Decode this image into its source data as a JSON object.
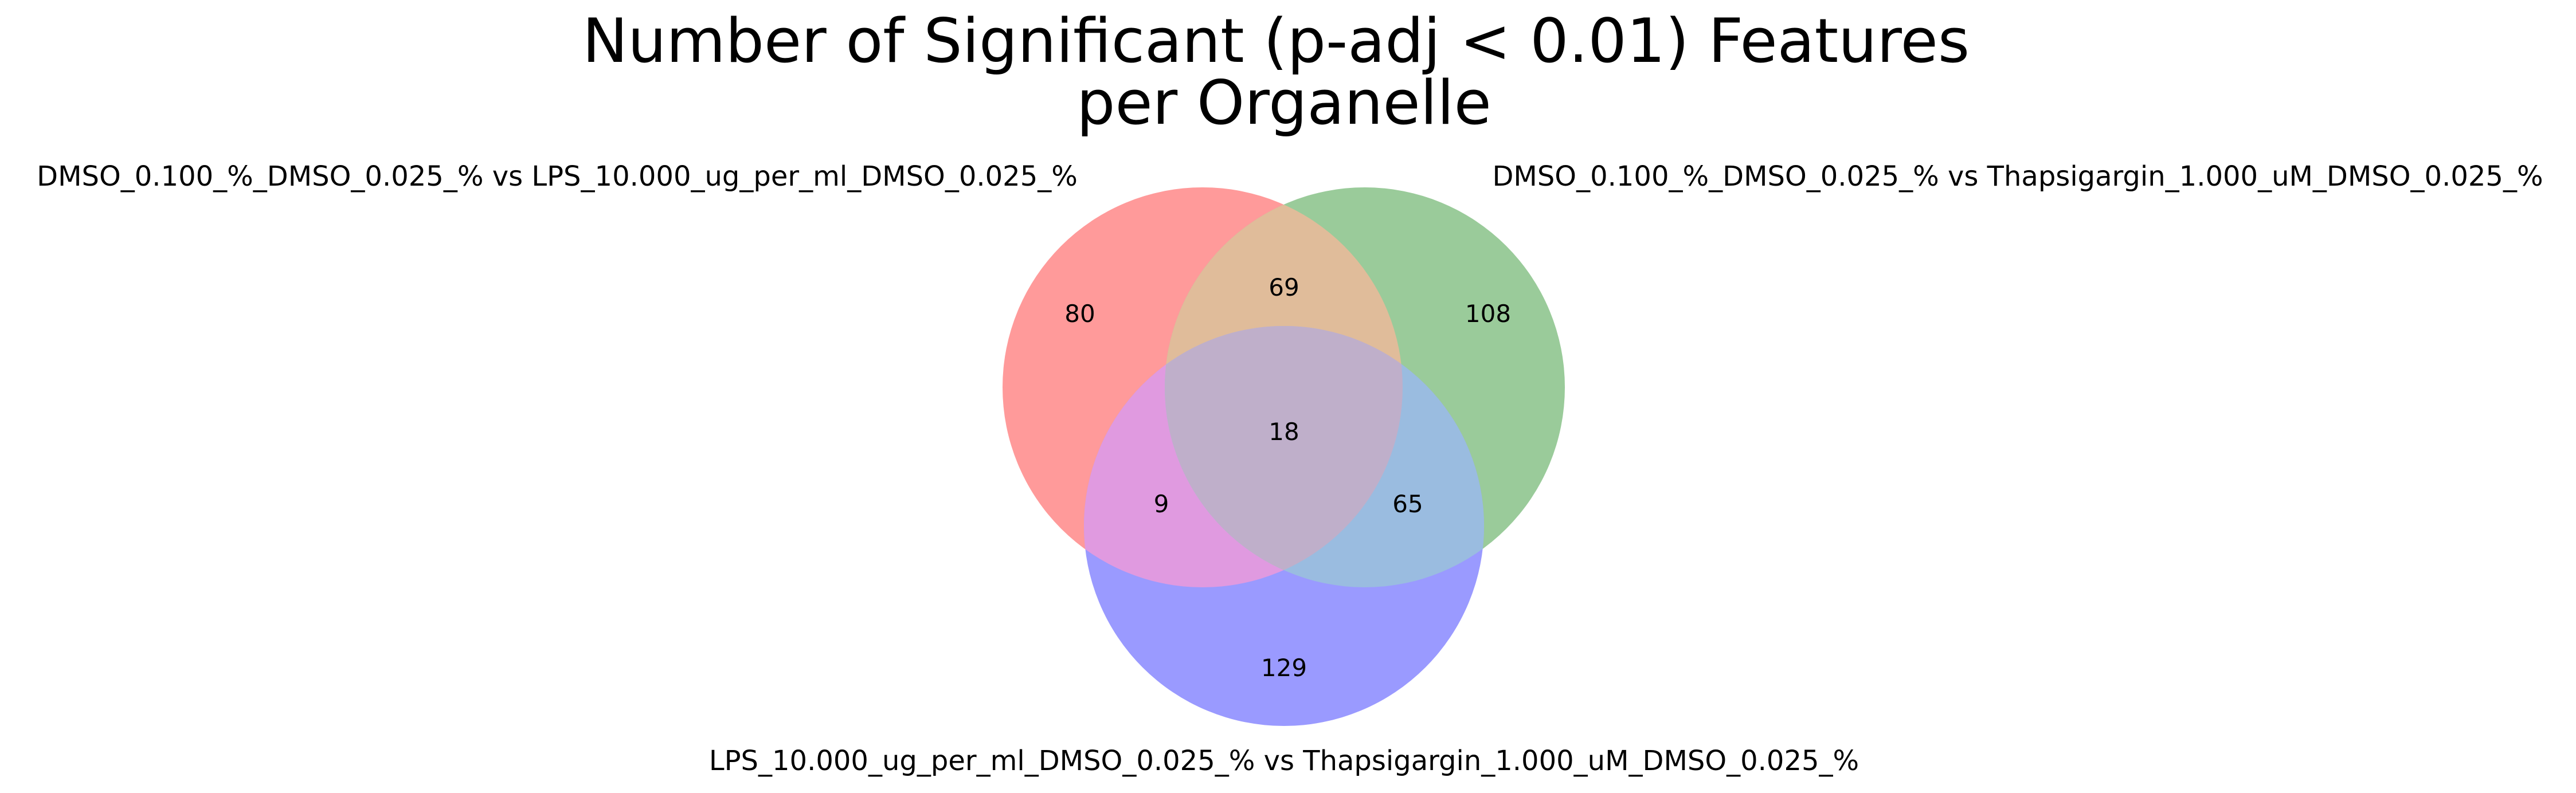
{
  "title": {
    "line1": "Number of Significant (p-adj < 0.01) Features",
    "line2": "per Organelle"
  },
  "venn": {
    "type": "venn3",
    "sets": [
      {
        "id": "A",
        "label": "DMSO_0.100_%_DMSO_0.025_% vs LPS_10.000_ug_per_ml_DMSO_0.025_%",
        "color": "#ff9a9a"
      },
      {
        "id": "B",
        "label": "DMSO_0.100_%_DMSO_0.025_% vs Thapsigargin_1.000_uM_DMSO_0.025_%",
        "color": "#9acb9a"
      },
      {
        "id": "C",
        "label": "LPS_10.000_ug_per_ml_DMSO_0.025_% vs Thapsigargin_1.000_uM_DMSO_0.025_%",
        "color": "#9a9aff"
      }
    ],
    "regions": {
      "A_only": 80,
      "B_only": 108,
      "C_only": 129,
      "AB_only": 69,
      "AC_only": 9,
      "BC_only": 65,
      "ABC": 18
    },
    "region_colors": {
      "AB": "#e0bc9a",
      "AC": "#e09ae0",
      "BC": "#9abce0",
      "ABC": "#bfafca"
    }
  }
}
